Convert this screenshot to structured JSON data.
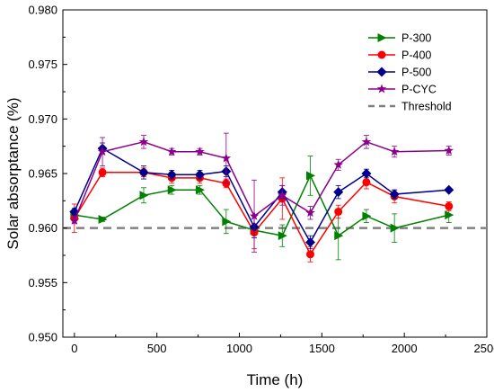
{
  "chart_data": {
    "type": "line",
    "title": "",
    "xlabel": "Time (h)",
    "ylabel": "Solar absorptance (%)",
    "xlim": [
      -70,
      2500
    ],
    "ylim": [
      0.95,
      0.98
    ],
    "xticks": [
      0,
      500,
      1000,
      1500,
      2000,
      2500
    ],
    "yticks": [
      0.95,
      0.955,
      0.96,
      0.965,
      0.97,
      0.975,
      0.98
    ],
    "x_tick_labels": [
      "0",
      "500",
      "1000",
      "1500",
      "2000",
      "2500"
    ],
    "y_tick_labels": [
      "0.950",
      "0.955",
      "0.960",
      "0.965",
      "0.970",
      "0.975",
      "0.980"
    ],
    "grid": false,
    "legend_position": "top-right",
    "series": [
      {
        "name": "P-300",
        "color": "#008000",
        "marker": "triangle-right",
        "x": [
          0,
          170,
          420,
          590,
          760,
          920,
          1090,
          1260,
          1430,
          1600,
          1770,
          1940,
          2270
        ],
        "y": [
          0.9612,
          0.9608,
          0.963,
          0.9635,
          0.9635,
          0.9606,
          0.9598,
          0.9593,
          0.9648,
          0.9593,
          0.9611,
          0.96,
          0.9612
        ],
        "err": [
          0.0004,
          0.0002,
          0.0007,
          0.0004,
          0.0004,
          0.0011,
          0.0004,
          0.001,
          0.0018,
          0.0022,
          0.0006,
          0.0013,
          0.0007
        ]
      },
      {
        "name": "P-400",
        "color": "#ff0000",
        "marker": "circle",
        "x": [
          0,
          170,
          420,
          590,
          760,
          920,
          1090,
          1260,
          1430,
          1600,
          1770,
          1940,
          2270
        ],
        "y": [
          0.9609,
          0.9651,
          0.9651,
          0.9646,
          0.9646,
          0.9641,
          0.9596,
          0.9627,
          0.9576,
          0.9615,
          0.9642,
          0.9629,
          0.962
        ],
        "err": [
          0.0013,
          0.0004,
          0.0004,
          0.0005,
          0.0005,
          0.0004,
          0.0015,
          0.0019,
          0.0007,
          0.0006,
          0.0006,
          0.0006,
          0.0004
        ]
      },
      {
        "name": "P-500",
        "color": "#00008b",
        "marker": "diamond",
        "x": [
          0,
          170,
          420,
          590,
          760,
          920,
          1090,
          1260,
          1430,
          1600,
          1770,
          1940,
          2270
        ],
        "y": [
          0.9615,
          0.9673,
          0.9651,
          0.9649,
          0.9649,
          0.9652,
          0.9601,
          0.9633,
          0.9587,
          0.9633,
          0.965,
          0.9631,
          0.9635
        ],
        "err": [
          0.0003,
          0.0005,
          0.0006,
          0.0004,
          0.0004,
          0.0005,
          0.001,
          0.0006,
          0.0006,
          0.0006,
          0.0004,
          0.0004,
          0.0001
        ]
      },
      {
        "name": "P-CYC",
        "color": "#8b008b",
        "marker": "star",
        "x": [
          0,
          170,
          420,
          590,
          760,
          920,
          1090,
          1260,
          1430,
          1600,
          1770,
          1940,
          2270
        ],
        "y": [
          0.9607,
          0.967,
          0.9679,
          0.967,
          0.967,
          0.9664,
          0.9611,
          0.963,
          0.9614,
          0.9658,
          0.9679,
          0.967,
          0.9671
        ],
        "err": [
          0.0003,
          0.0013,
          0.0006,
          0.0003,
          0.0003,
          0.0023,
          0.0033,
          0.0009,
          0.0006,
          0.0005,
          0.0006,
          0.0005,
          0.0004
        ]
      }
    ],
    "reference_lines": [
      {
        "name": "Threshold",
        "y": 0.96,
        "color": "#808080",
        "style": "dashed"
      }
    ]
  }
}
